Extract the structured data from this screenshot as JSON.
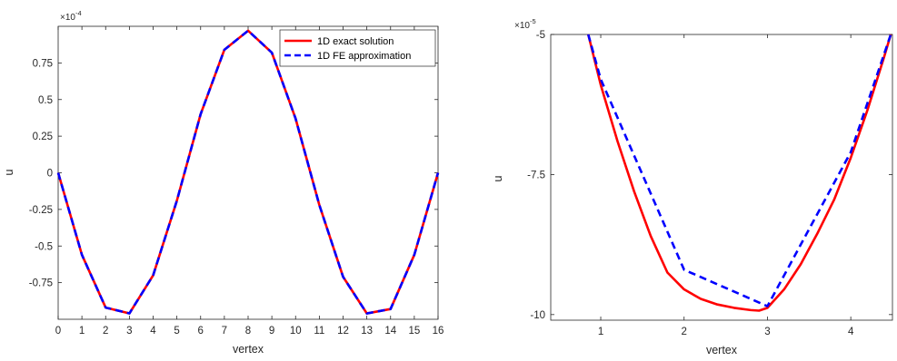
{
  "chart_data": [
    {
      "type": "line",
      "title": "",
      "xlabel": "vertex",
      "ylabel": "u",
      "y_multiplier": {
        "base": "×10",
        "exponent": "-4"
      },
      "xlim": [
        0,
        16
      ],
      "ylim": [
        -1.0,
        1.0
      ],
      "x_ticks": [
        0,
        1,
        2,
        3,
        4,
        5,
        6,
        7,
        8,
        9,
        10,
        11,
        12,
        13,
        14,
        15,
        16
      ],
      "x_tick_labels": [
        "0",
        "1",
        "2",
        "3",
        "4",
        "5",
        "6",
        "7",
        "8",
        "9",
        "10",
        "11",
        "12",
        "13",
        "14",
        "15",
        "16"
      ],
      "y_ticks": [
        -0.75,
        -0.5,
        -0.25,
        0,
        0.25,
        0.5,
        0.75
      ],
      "y_tick_labels": [
        "-0.75",
        "-0.5",
        "-0.25",
        "0",
        "0.25",
        "0.5",
        "0.75"
      ],
      "legend_position": "top-right",
      "grid": false,
      "series": [
        {
          "name": "1D exact solution",
          "color": "#ff0000",
          "style": "solid",
          "x": [
            0,
            1,
            2,
            3,
            4,
            5,
            6,
            7,
            8,
            9,
            10,
            11,
            12,
            13,
            14,
            15,
            16
          ],
          "y": [
            0,
            -0.56,
            -0.92,
            -0.96,
            -0.7,
            -0.19,
            0.4,
            0.84,
            0.97,
            0.82,
            0.37,
            -0.22,
            -0.71,
            -0.96,
            -0.93,
            -0.56,
            0
          ]
        },
        {
          "name": "1D FE approximation",
          "color": "#0000ff",
          "style": "dashed",
          "x": [
            0,
            1,
            2,
            3,
            4,
            5,
            6,
            7,
            8,
            9,
            10,
            11,
            12,
            13,
            14,
            15,
            16
          ],
          "y": [
            0,
            -0.56,
            -0.92,
            -0.96,
            -0.7,
            -0.19,
            0.4,
            0.84,
            0.97,
            0.82,
            0.37,
            -0.22,
            -0.71,
            -0.96,
            -0.93,
            -0.56,
            0
          ]
        }
      ]
    },
    {
      "type": "line",
      "title": "",
      "xlabel": "vertex",
      "ylabel": "u",
      "y_multiplier": {
        "base": "×10",
        "exponent": "-5"
      },
      "xlim": [
        0.4,
        4.5
      ],
      "ylim": [
        -10.1,
        -5.0
      ],
      "x_ticks": [
        1,
        2,
        3,
        4
      ],
      "x_tick_labels": [
        "1",
        "2",
        "3",
        "4"
      ],
      "y_ticks": [
        -10,
        -7.5,
        -5
      ],
      "y_tick_labels": [
        "-10",
        "-7.5",
        "-5"
      ],
      "grid": false,
      "series": [
        {
          "color": "#ff0000",
          "style": "solid",
          "x": [
            0.85,
            1.0,
            1.2,
            1.4,
            1.6,
            1.8,
            2.0,
            2.2,
            2.4,
            2.6,
            2.8,
            2.9,
            3.0,
            3.2,
            3.4,
            3.6,
            3.8,
            4.0,
            4.2,
            4.4,
            4.48
          ],
          "y": [
            -5.0,
            -5.9,
            -6.9,
            -7.8,
            -8.6,
            -9.25,
            -9.55,
            -9.72,
            -9.82,
            -9.88,
            -9.92,
            -9.93,
            -9.88,
            -9.55,
            -9.1,
            -8.55,
            -7.95,
            -7.2,
            -6.35,
            -5.4,
            -5.0
          ]
        },
        {
          "color": "#0000ff",
          "style": "dashed",
          "x": [
            0.85,
            1.0,
            2.0,
            3.0,
            4.0,
            4.48
          ],
          "y": [
            -5.0,
            -5.8,
            -9.2,
            -9.85,
            -7.1,
            -5.0
          ]
        }
      ]
    }
  ]
}
